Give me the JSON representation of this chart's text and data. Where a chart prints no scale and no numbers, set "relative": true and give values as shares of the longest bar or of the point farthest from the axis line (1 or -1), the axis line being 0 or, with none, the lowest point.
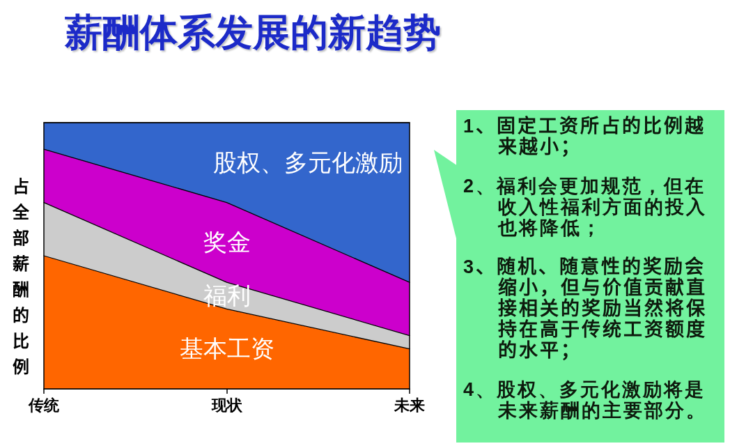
{
  "chart_data": {
    "type": "area",
    "title": "薪酬体系发展的新趋势",
    "ylabel": "占全部薪酬的比例",
    "categories": [
      "传统",
      "现状",
      "未来"
    ],
    "series": [
      {
        "name": "基本工资",
        "color": "#ff6600",
        "values": [
          0.5,
          0.3,
          0.15
        ]
      },
      {
        "name": "福利",
        "color": "#cccccc",
        "values": [
          0.2,
          0.1,
          0.05
        ]
      },
      {
        "name": "奖金",
        "color": "#cc00cc",
        "values": [
          0.2,
          0.3,
          0.2
        ]
      },
      {
        "name": "股权、多元化激励",
        "color": "#3366cc",
        "values": [
          0.1,
          0.3,
          0.6
        ]
      }
    ],
    "stacked": true,
    "relative": true,
    "legend": false,
    "grid": false,
    "marker": "none",
    "annotations": [
      "1、固定工资所占的比例越来越小；",
      "2、福利会更加规范，但在收入性福利方面的投入也将降低；",
      "3、随机、随意性的奖励会缩小，但与价值贡献直接相关的奖励当然将保持在高于传统工资额度的水平；",
      "4、股权、多元化激励将是未来薪酬的主要部分。"
    ]
  }
}
